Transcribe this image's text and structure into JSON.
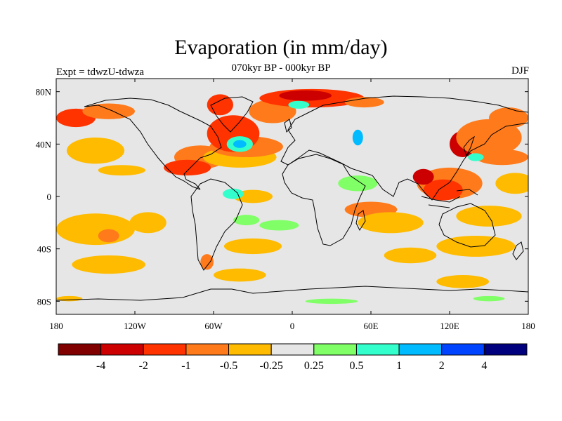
{
  "title": "Evaporation (in mm/day)",
  "subtitle": "070kyr BP - 000kyr BP",
  "experiment_label": "Expt = tdwzU-tdwza",
  "season_label": "DJF",
  "map": {
    "projection": "cylindrical-equidistant",
    "lon_range": [
      -180,
      180
    ],
    "lat_range": [
      -90,
      90
    ],
    "background_color": "#e6e6e6",
    "x_ticks": [
      {
        "lon": -180,
        "label": "180"
      },
      {
        "lon": -120,
        "label": "120W"
      },
      {
        "lon": -60,
        "label": "60W"
      },
      {
        "lon": 0,
        "label": "0"
      },
      {
        "lon": 60,
        "label": "60E"
      },
      {
        "lon": 120,
        "label": "120E"
      },
      {
        "lon": 180,
        "label": "180"
      }
    ],
    "y_ticks": [
      {
        "lat": 80,
        "label": "80N"
      },
      {
        "lat": 40,
        "label": "40N"
      },
      {
        "lat": 0,
        "label": "0"
      },
      {
        "lat": -40,
        "label": "40S"
      },
      {
        "lat": -80,
        "label": "80S"
      }
    ]
  },
  "colorbar": {
    "colors": [
      "#800000",
      "#cc0000",
      "#ff3300",
      "#ff7a1a",
      "#ffbb00",
      "#e6e6e6",
      "#80ff66",
      "#33ffcc",
      "#00bbff",
      "#0044ff",
      "#00007f"
    ],
    "labels": [
      "-4",
      "-2",
      "-1",
      "-0.5",
      "-0.25",
      "0.25",
      "0.5",
      "1",
      "2",
      "4"
    ]
  },
  "anomaly_patches": [
    {
      "lon": -165,
      "lat": 60,
      "rx": 15,
      "ry": 7,
      "color": "#ff3300"
    },
    {
      "lon": -140,
      "lat": 65,
      "rx": 20,
      "ry": 6,
      "color": "#ff7a1a"
    },
    {
      "lon": -150,
      "lat": 35,
      "rx": 22,
      "ry": 10,
      "color": "#ffbb00"
    },
    {
      "lon": -130,
      "lat": 20,
      "rx": 18,
      "ry": 4,
      "color": "#ffbb00"
    },
    {
      "lon": -150,
      "lat": -25,
      "rx": 30,
      "ry": 12,
      "color": "#ffbb00"
    },
    {
      "lon": -140,
      "lat": -52,
      "rx": 28,
      "ry": 7,
      "color": "#ffbb00"
    },
    {
      "lon": -140,
      "lat": -30,
      "rx": 8,
      "ry": 5,
      "color": "#ff7a1a"
    },
    {
      "lon": -110,
      "lat": -20,
      "rx": 14,
      "ry": 8,
      "color": "#ffbb00"
    },
    {
      "lon": -170,
      "lat": -78,
      "rx": 10,
      "ry": 2,
      "color": "#ffbb00"
    },
    {
      "lon": -70,
      "lat": 30,
      "rx": 20,
      "ry": 9,
      "color": "#ff7a1a"
    },
    {
      "lon": -40,
      "lat": 30,
      "rx": 28,
      "ry": 8,
      "color": "#ffbb00"
    },
    {
      "lon": -35,
      "lat": 38,
      "rx": 28,
      "ry": 8,
      "color": "#ff7a1a"
    },
    {
      "lon": -45,
      "lat": 48,
      "rx": 20,
      "ry": 14,
      "color": "#ff3300"
    },
    {
      "lon": -40,
      "lat": 40,
      "rx": 10,
      "ry": 6,
      "color": "#33ffcc"
    },
    {
      "lon": -40,
      "lat": 40,
      "rx": 5,
      "ry": 3,
      "color": "#00bbff"
    },
    {
      "lon": -15,
      "lat": 65,
      "rx": 18,
      "ry": 9,
      "color": "#ff7a1a"
    },
    {
      "lon": -55,
      "lat": 70,
      "rx": 10,
      "ry": 8,
      "color": "#ff3300"
    },
    {
      "lon": 15,
      "lat": 75,
      "rx": 40,
      "ry": 7,
      "color": "#ff3300"
    },
    {
      "lon": 10,
      "lat": 77,
      "rx": 20,
      "ry": 4,
      "color": "#cc0000"
    },
    {
      "lon": 5,
      "lat": 70,
      "rx": 8,
      "ry": 3,
      "color": "#33ffcc"
    },
    {
      "lon": 55,
      "lat": 72,
      "rx": 15,
      "ry": 4,
      "color": "#ff7a1a"
    },
    {
      "lon": 50,
      "lat": 45,
      "rx": 4,
      "ry": 6,
      "color": "#00bbff"
    },
    {
      "lon": -80,
      "lat": 22,
      "rx": 18,
      "ry": 6,
      "color": "#ff3300"
    },
    {
      "lon": -30,
      "lat": 0,
      "rx": 15,
      "ry": 5,
      "color": "#ffbb00"
    },
    {
      "lon": -45,
      "lat": 2,
      "rx": 8,
      "ry": 4,
      "color": "#33ffcc"
    },
    {
      "lon": -35,
      "lat": -18,
      "rx": 10,
      "ry": 4,
      "color": "#80ff66"
    },
    {
      "lon": -10,
      "lat": -22,
      "rx": 15,
      "ry": 4,
      "color": "#80ff66"
    },
    {
      "lon": -30,
      "lat": -38,
      "rx": 22,
      "ry": 6,
      "color": "#ffbb00"
    },
    {
      "lon": -40,
      "lat": -60,
      "rx": 20,
      "ry": 5,
      "color": "#ffbb00"
    },
    {
      "lon": 30,
      "lat": -80,
      "rx": 20,
      "ry": 2,
      "color": "#80ff66"
    },
    {
      "lon": 50,
      "lat": 10,
      "rx": 15,
      "ry": 6,
      "color": "#80ff66"
    },
    {
      "lon": 60,
      "lat": -10,
      "rx": 20,
      "ry": 6,
      "color": "#ff7a1a"
    },
    {
      "lon": 75,
      "lat": -20,
      "rx": 25,
      "ry": 8,
      "color": "#ffbb00"
    },
    {
      "lon": 90,
      "lat": -45,
      "rx": 20,
      "ry": 6,
      "color": "#ffbb00"
    },
    {
      "lon": 140,
      "lat": -38,
      "rx": 30,
      "ry": 8,
      "color": "#ffbb00"
    },
    {
      "lon": 130,
      "lat": -65,
      "rx": 20,
      "ry": 5,
      "color": "#ffbb00"
    },
    {
      "lon": 150,
      "lat": -78,
      "rx": 12,
      "ry": 2,
      "color": "#80ff66"
    },
    {
      "lon": 120,
      "lat": 10,
      "rx": 25,
      "ry": 12,
      "color": "#ff7a1a"
    },
    {
      "lon": 115,
      "lat": 5,
      "rx": 15,
      "ry": 8,
      "color": "#ff3300"
    },
    {
      "lon": 100,
      "lat": 15,
      "rx": 8,
      "ry": 6,
      "color": "#cc0000"
    },
    {
      "lon": 130,
      "lat": 40,
      "rx": 10,
      "ry": 10,
      "color": "#cc0000"
    },
    {
      "lon": 150,
      "lat": 45,
      "rx": 25,
      "ry": 14,
      "color": "#ff7a1a"
    },
    {
      "lon": 160,
      "lat": 30,
      "rx": 20,
      "ry": 6,
      "color": "#ff7a1a"
    },
    {
      "lon": 165,
      "lat": 60,
      "rx": 15,
      "ry": 8,
      "color": "#ff7a1a"
    },
    {
      "lon": 170,
      "lat": 10,
      "rx": 15,
      "ry": 8,
      "color": "#ffbb00"
    },
    {
      "lon": 150,
      "lat": -15,
      "rx": 25,
      "ry": 8,
      "color": "#ffbb00"
    },
    {
      "lon": 140,
      "lat": 30,
      "rx": 6,
      "ry": 3,
      "color": "#33ffcc"
    },
    {
      "lon": -65,
      "lat": -50,
      "rx": 5,
      "ry": 6,
      "color": "#ff7a1a"
    }
  ]
}
